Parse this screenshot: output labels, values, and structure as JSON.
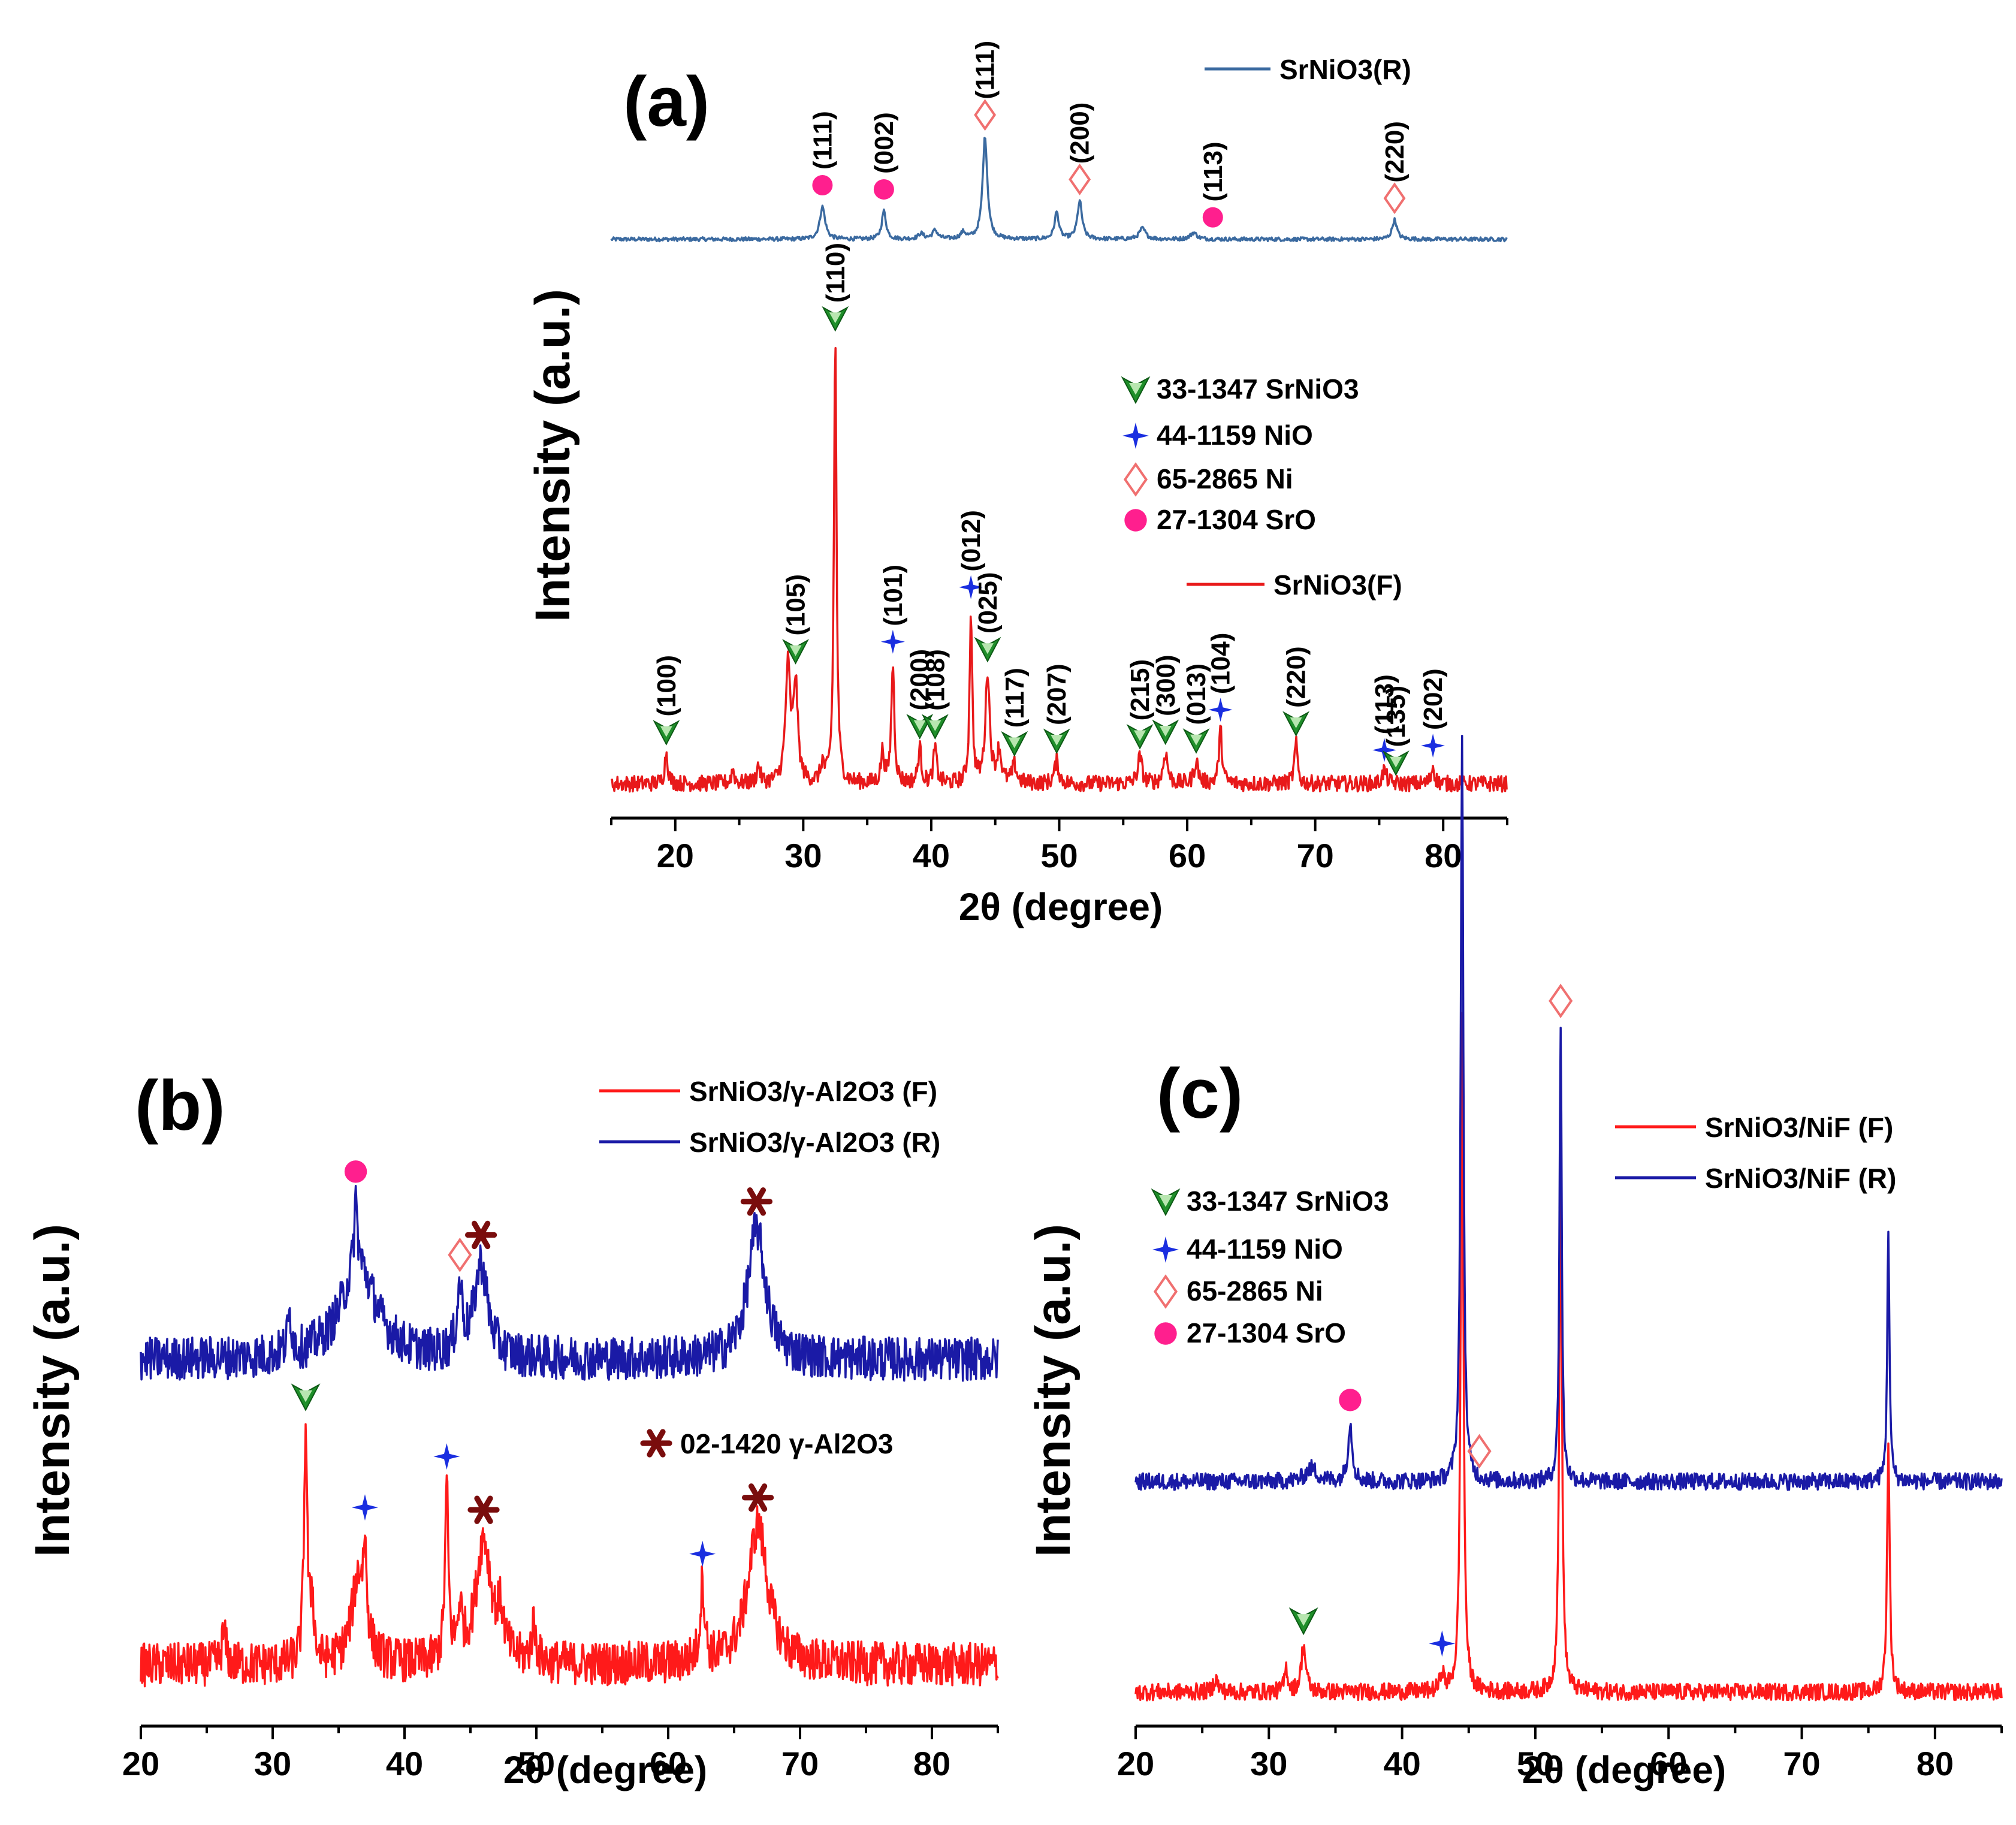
{
  "chart_data": [
    {
      "panel": "(a)",
      "type": "line",
      "xlabel": "2θ (degree)",
      "ylabel": "Intensity (a.u.)",
      "xlim": [
        15,
        85
      ],
      "x_ticks": [
        20,
        30,
        40,
        50,
        60,
        70,
        80
      ],
      "series": [
        {
          "name": "SrNiO3(R)",
          "legend_label": "SrNiO3(R)",
          "color": "#3b6aa0",
          "baseline": 0.06,
          "noise": 0.018,
          "peaks": [
            {
              "x": 31.5,
              "h": 0.3,
              "w": 0.25
            },
            {
              "x": 36.3,
              "h": 0.26,
              "w": 0.2
            },
            {
              "x": 39.2,
              "h": 0.05,
              "w": 0.25
            },
            {
              "x": 40.3,
              "h": 0.08,
              "w": 0.25
            },
            {
              "x": 42.5,
              "h": 0.06,
              "w": 0.25
            },
            {
              "x": 44.2,
              "h": 0.95,
              "w": 0.22
            },
            {
              "x": 49.8,
              "h": 0.25,
              "w": 0.2
            },
            {
              "x": 51.6,
              "h": 0.35,
              "w": 0.22
            },
            {
              "x": 56.5,
              "h": 0.1,
              "w": 0.3
            },
            {
              "x": 60.5,
              "h": 0.06,
              "w": 0.3
            },
            {
              "x": 76.2,
              "h": 0.18,
              "w": 0.22
            }
          ]
        },
        {
          "name": "SrNiO3(F)",
          "legend_label": "SrNiO3(F)",
          "color": "#e8191a",
          "baseline": 0.03,
          "noise": 0.018,
          "peaks": [
            {
              "x": 19.3,
              "h": 0.07,
              "w": 0.15
            },
            {
              "x": 24.5,
              "h": 0.03,
              "w": 0.15
            },
            {
              "x": 26.5,
              "h": 0.04,
              "w": 0.15
            },
            {
              "x": 28.8,
              "h": 0.26,
              "w": 0.22
            },
            {
              "x": 29.4,
              "h": 0.22,
              "w": 0.2
            },
            {
              "x": 31.5,
              "h": 0.04,
              "w": 0.15
            },
            {
              "x": 32.5,
              "h": 1.0,
              "w": 0.12
            },
            {
              "x": 36.2,
              "h": 0.07,
              "w": 0.15
            },
            {
              "x": 37.0,
              "h": 0.27,
              "w": 0.14
            },
            {
              "x": 39.1,
              "h": 0.08,
              "w": 0.15
            },
            {
              "x": 40.3,
              "h": 0.08,
              "w": 0.15
            },
            {
              "x": 43.1,
              "h": 0.39,
              "w": 0.12
            },
            {
              "x": 44.4,
              "h": 0.25,
              "w": 0.2
            },
            {
              "x": 45.3,
              "h": 0.07,
              "w": 0.2
            },
            {
              "x": 46.5,
              "h": 0.04,
              "w": 0.2
            },
            {
              "x": 49.8,
              "h": 0.05,
              "w": 0.2
            },
            {
              "x": 56.3,
              "h": 0.06,
              "w": 0.2
            },
            {
              "x": 58.3,
              "h": 0.07,
              "w": 0.2
            },
            {
              "x": 60.7,
              "h": 0.05,
              "w": 0.2
            },
            {
              "x": 62.6,
              "h": 0.12,
              "w": 0.15
            },
            {
              "x": 68.5,
              "h": 0.09,
              "w": 0.15
            },
            {
              "x": 75.4,
              "h": 0.03,
              "w": 0.2
            },
            {
              "x": 79.2,
              "h": 0.04,
              "w": 0.15
            }
          ]
        }
      ],
      "legend_entries": [
        {
          "symbol": "triangle",
          "text": "33-1347 SrNiO3"
        },
        {
          "symbol": "star",
          "text": "44-1159 NiO"
        },
        {
          "symbol": "diamond",
          "text": "65-2865 Ni"
        },
        {
          "symbol": "circle",
          "text": "27-1304 SrO"
        }
      ],
      "peak_annotations_R": [
        {
          "x": 31.5,
          "symbol": "circle",
          "label": "(111)"
        },
        {
          "x": 36.3,
          "symbol": "circle",
          "label": "(002)"
        },
        {
          "x": 44.2,
          "symbol": "diamond",
          "label": "(111)"
        },
        {
          "x": 51.6,
          "symbol": "diamond",
          "label": "(200)"
        },
        {
          "x": 62.0,
          "symbol": "circle",
          "label": "(113)"
        },
        {
          "x": 76.2,
          "symbol": "diamond",
          "label": "(220)"
        }
      ],
      "peak_annotations_F": [
        {
          "x": 19.3,
          "symbol": "triangle",
          "label": "(100)"
        },
        {
          "x": 29.4,
          "symbol": "triangle",
          "label": "(105)"
        },
        {
          "x": 32.5,
          "symbol": "triangle",
          "label": "(110)"
        },
        {
          "x": 37.0,
          "symbol": "star",
          "label": "(101)"
        },
        {
          "x": 39.1,
          "symbol": "triangle",
          "label": "(200)"
        },
        {
          "x": 40.3,
          "symbol": "triangle",
          "label": "(108)"
        },
        {
          "x": 43.1,
          "symbol": "star",
          "label": "(012)"
        },
        {
          "x": 44.4,
          "symbol": "triangle",
          "label": "(025)"
        },
        {
          "x": 46.5,
          "symbol": "triangle",
          "label": "(117)"
        },
        {
          "x": 49.8,
          "symbol": "triangle",
          "label": "(207)"
        },
        {
          "x": 56.3,
          "symbol": "triangle",
          "label": "(215)"
        },
        {
          "x": 58.3,
          "symbol": "triangle",
          "label": "(300)"
        },
        {
          "x": 60.7,
          "symbol": "triangle",
          "label": "(013)"
        },
        {
          "x": 62.6,
          "symbol": "star",
          "label": "(104)"
        },
        {
          "x": 68.5,
          "symbol": "triangle",
          "label": "(220)"
        },
        {
          "x": 75.4,
          "symbol": "star",
          "label": "(113)"
        },
        {
          "x": 76.3,
          "symbol": "triangle",
          "label": "(135)"
        },
        {
          "x": 79.2,
          "symbol": "star",
          "label": "(202)"
        }
      ]
    },
    {
      "panel": "(b)",
      "type": "line",
      "xlabel": "2θ (degree)",
      "ylabel": "Intensity (a.u.)",
      "xlim": [
        20,
        85
      ],
      "x_ticks": [
        20,
        30,
        40,
        50,
        60,
        70,
        80
      ],
      "series": [
        {
          "name": "SrNiO3/γ-Al2O3 (F)",
          "legend_label": "SrNiO3/γ-Al2O3 (F)",
          "color": "#ff1a1a",
          "baseline": 0.08,
          "noise": 0.07,
          "peaks": [
            {
              "x": 32.5,
              "h": 0.75,
              "w": 0.15
            },
            {
              "x": 33.0,
              "h": 0.2,
              "w": 0.15
            },
            {
              "x": 36.5,
              "h": 0.28,
              "w": 0.6
            },
            {
              "x": 37.0,
              "h": 0.25,
              "w": 0.15
            },
            {
              "x": 43.2,
              "h": 0.55,
              "w": 0.15
            },
            {
              "x": 44.2,
              "h": 0.15,
              "w": 0.2
            },
            {
              "x": 46.0,
              "h": 0.4,
              "w": 0.7
            },
            {
              "x": 47.3,
              "h": 0.12,
              "w": 0.3
            },
            {
              "x": 49.8,
              "h": 0.12,
              "w": 0.2
            },
            {
              "x": 62.6,
              "h": 0.25,
              "w": 0.2
            },
            {
              "x": 66.8,
              "h": 0.45,
              "w": 0.9
            },
            {
              "x": 26.3,
              "h": 0.1,
              "w": 0.2
            }
          ]
        },
        {
          "name": "SrNiO3/γ-Al2O3 (R)",
          "legend_label": "SrNiO3/γ-Al2O3 (R)",
          "color": "#1a1aa6",
          "baseline": 0.06,
          "noise": 0.07,
          "peaks": [
            {
              "x": 36.5,
              "h": 0.3,
              "w": 1.6
            },
            {
              "x": 36.3,
              "h": 0.22,
              "w": 0.15
            },
            {
              "x": 31.3,
              "h": 0.12,
              "w": 0.2
            },
            {
              "x": 44.2,
              "h": 0.2,
              "w": 0.25
            },
            {
              "x": 45.8,
              "h": 0.3,
              "w": 0.6
            },
            {
              "x": 66.7,
              "h": 0.42,
              "w": 0.8
            }
          ]
        }
      ],
      "legend_entries": [
        {
          "symbol": "asterisk",
          "text": "02-1420 γ-Al2O3"
        }
      ],
      "peak_annotations_R": [
        {
          "x": 36.3,
          "symbol": "circle",
          "label": ""
        },
        {
          "x": 44.2,
          "symbol": "diamond",
          "label": ""
        },
        {
          "x": 45.8,
          "symbol": "asterisk",
          "label": ""
        },
        {
          "x": 66.7,
          "symbol": "asterisk",
          "label": ""
        }
      ],
      "peak_annotations_F": [
        {
          "x": 32.5,
          "symbol": "triangle",
          "label": ""
        },
        {
          "x": 37.0,
          "symbol": "star",
          "label": ""
        },
        {
          "x": 43.2,
          "symbol": "star",
          "label": ""
        },
        {
          "x": 46.0,
          "symbol": "asterisk",
          "label": ""
        },
        {
          "x": 62.6,
          "symbol": "star",
          "label": ""
        },
        {
          "x": 66.8,
          "symbol": "asterisk",
          "label": ""
        }
      ]
    },
    {
      "panel": "(c)",
      "type": "line",
      "xlabel": "2θ (degree)",
      "ylabel": "Intensity (a.u.)",
      "xlim": [
        20,
        85
      ],
      "x_ticks": [
        20,
        30,
        40,
        50,
        60,
        70,
        80
      ],
      "series": [
        {
          "name": "SrNiO3/NiF (F)",
          "legend_label": "SrNiO3/NiF (F)",
          "color": "#ff1a1a",
          "baseline": 0.03,
          "noise": 0.025,
          "peaks": [
            {
              "x": 26.0,
              "h": 0.04,
              "w": 0.2
            },
            {
              "x": 31.3,
              "h": 0.07,
              "w": 0.15
            },
            {
              "x": 32.6,
              "h": 0.14,
              "w": 0.2
            },
            {
              "x": 43.0,
              "h": 0.06,
              "w": 0.15
            },
            {
              "x": 44.5,
              "h": 2.0,
              "w": 0.12
            },
            {
              "x": 51.9,
              "h": 1.55,
              "w": 0.12
            },
            {
              "x": 76.5,
              "h": 0.72,
              "w": 0.12
            }
          ]
        },
        {
          "name": "SrNiO3/NiF (R)",
          "legend_label": "SrNiO3/NiF (R)",
          "color": "#1a1aa6",
          "baseline": 0.05,
          "noise": 0.025,
          "peaks": [
            {
              "x": 33.2,
              "h": 0.04,
              "w": 0.5
            },
            {
              "x": 36.1,
              "h": 0.17,
              "w": 0.2
            },
            {
              "x": 44.5,
              "h": 2.2,
              "w": 0.12
            },
            {
              "x": 51.9,
              "h": 1.36,
              "w": 0.1
            },
            {
              "x": 76.5,
              "h": 0.75,
              "w": 0.1
            }
          ]
        }
      ],
      "legend_entries": [
        {
          "symbol": "triangle",
          "text": "33-1347 SrNiO3"
        },
        {
          "symbol": "star",
          "text": "44-1159 NiO"
        },
        {
          "symbol": "diamond",
          "text": "65-2865 Ni"
        },
        {
          "symbol": "circle",
          "text": "27-1304 SrO"
        }
      ],
      "peak_annotations_R": [
        {
          "x": 36.1,
          "symbol": "circle",
          "label": ""
        },
        {
          "x": 45.8,
          "symbol": "diamond",
          "label": ""
        },
        {
          "x": 51.9,
          "symbol": "diamond",
          "label": ""
        }
      ],
      "peak_annotations_F": [
        {
          "x": 32.6,
          "symbol": "triangle",
          "label": ""
        },
        {
          "x": 43.0,
          "symbol": "star",
          "label": ""
        }
      ]
    }
  ],
  "colors": {
    "triangle_fill": "#1f8f2a",
    "star_fill": "#1a2ee0",
    "diamond_stroke": "#f07070",
    "circle_fill": "#ff1f8e",
    "asterisk_fill": "#7a0d0d"
  }
}
